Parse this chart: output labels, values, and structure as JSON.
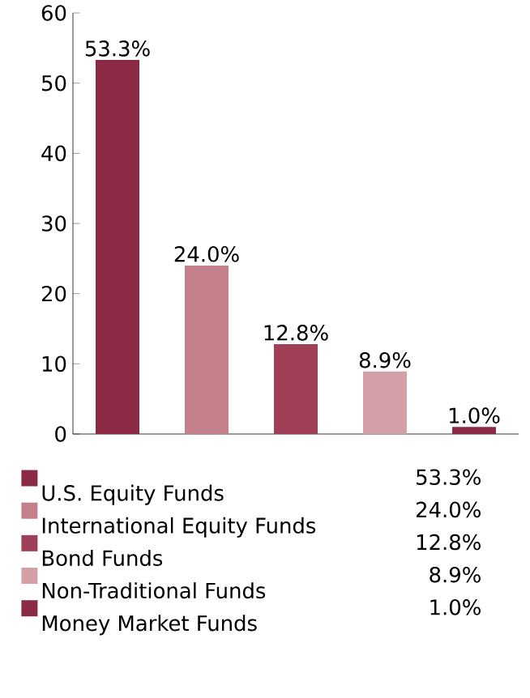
{
  "chart_data": {
    "type": "bar",
    "categories": [
      null,
      null,
      null,
      null,
      null
    ],
    "series": [
      {
        "name": "U.S. Equity Funds",
        "color": "#8b2a44",
        "values": [
          53.3,
          null,
          null,
          null,
          null
        ],
        "value_labels": [
          "53.3%",
          null,
          null,
          null,
          null
        ]
      },
      {
        "name": "International Equity Funds",
        "color": "#c4808a",
        "values": [
          null,
          24.0,
          null,
          null,
          null
        ],
        "value_labels": [
          null,
          "24.0%",
          null,
          null,
          null
        ]
      },
      {
        "name": "Bond Funds",
        "color": "#a04058",
        "values": [
          null,
          null,
          12.8,
          null,
          null
        ],
        "value_labels": [
          null,
          null,
          "12.8%",
          null,
          null
        ]
      },
      {
        "name": "Non-Traditional Funds",
        "color": "#d4a0a8",
        "values": [
          null,
          null,
          null,
          8.9,
          null
        ],
        "value_labels": [
          null,
          null,
          null,
          "8.9%",
          null
        ]
      },
      {
        "name": "Money Market Funds",
        "color": "#8b2a44",
        "values": [
          null,
          null,
          null,
          null,
          1.0
        ],
        "value_labels": [
          null,
          null,
          null,
          null,
          "1.0%"
        ]
      }
    ],
    "ylim": [
      0,
      60
    ],
    "yticks": [
      0,
      10,
      20,
      30,
      40,
      50,
      60
    ],
    "legend": "bottom"
  }
}
